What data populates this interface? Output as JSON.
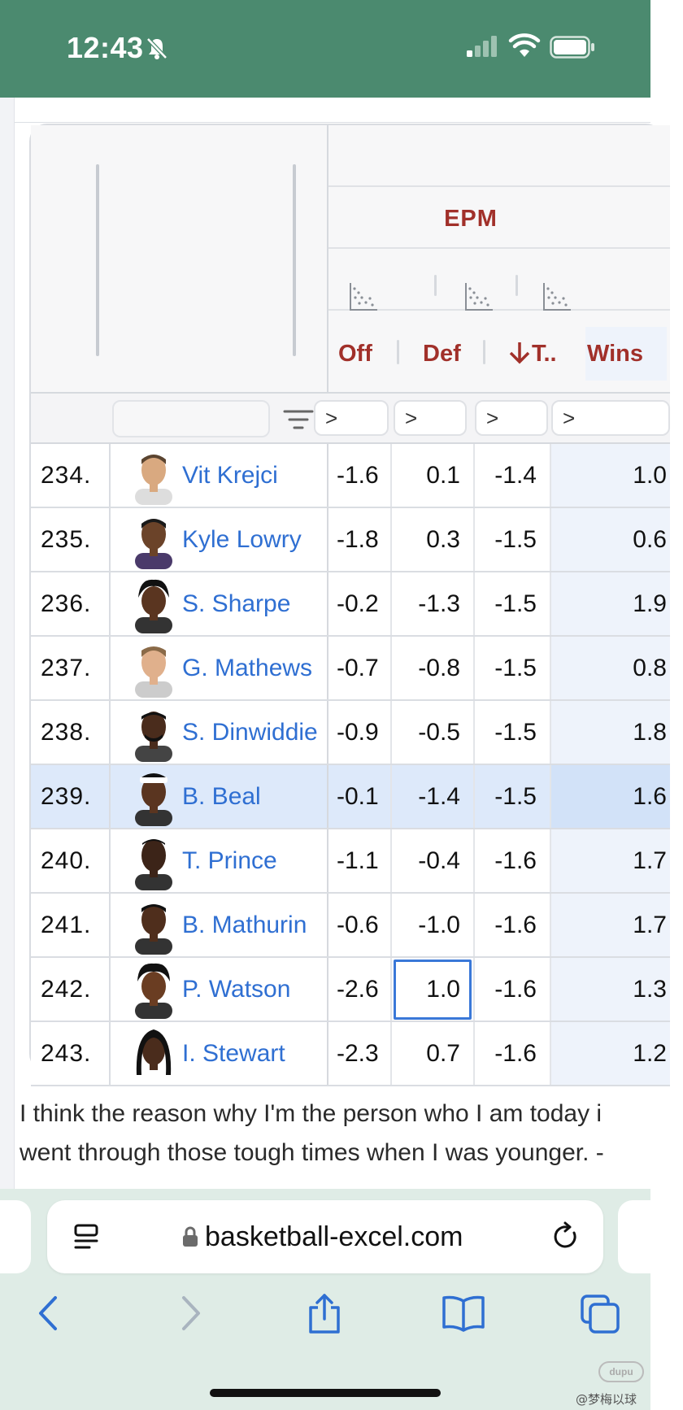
{
  "status_bar": {
    "time": "12:43"
  },
  "table": {
    "group_title": "EPM",
    "columns": {
      "off": "Off",
      "def": "Def",
      "tot": "T..",
      "wins": "Wins"
    },
    "filter_symbol": ">",
    "rows": [
      {
        "rank": "234.",
        "name": "Vit Krejci",
        "off": "-1.6",
        "def": "0.1",
        "tot": "-1.4",
        "wins": "1.0"
      },
      {
        "rank": "235.",
        "name": "Kyle Lowry",
        "off": "-1.8",
        "def": "0.3",
        "tot": "-1.5",
        "wins": "0.6"
      },
      {
        "rank": "236.",
        "name": "S. Sharpe",
        "off": "-0.2",
        "def": "-1.3",
        "tot": "-1.5",
        "wins": "1.9"
      },
      {
        "rank": "237.",
        "name": "G. Mathews",
        "off": "-0.7",
        "def": "-0.8",
        "tot": "-1.5",
        "wins": "0.8"
      },
      {
        "rank": "238.",
        "name": "S. Dinwiddie",
        "off": "-0.9",
        "def": "-0.5",
        "tot": "-1.5",
        "wins": "1.8"
      },
      {
        "rank": "239.",
        "name": "B. Beal",
        "off": "-0.1",
        "def": "-1.4",
        "tot": "-1.5",
        "wins": "1.6"
      },
      {
        "rank": "240.",
        "name": "T. Prince",
        "off": "-1.1",
        "def": "-0.4",
        "tot": "-1.6",
        "wins": "1.7"
      },
      {
        "rank": "241.",
        "name": "B. Mathurin",
        "off": "-0.6",
        "def": "-1.0",
        "tot": "-1.6",
        "wins": "1.7"
      },
      {
        "rank": "242.",
        "name": "P. Watson",
        "off": "-2.6",
        "def": "1.0",
        "tot": "-1.6",
        "wins": "1.3"
      },
      {
        "rank": "243.",
        "name": "I. Stewart",
        "off": "-2.3",
        "def": "0.7",
        "tot": "-1.6",
        "wins": "1.2"
      }
    ],
    "highlighted_rank": "239.",
    "selected_cell": "242. Def"
  },
  "quote": {
    "line1": "I think the reason why I'm the person who I am today i",
    "line2": "went through those tough times when I was younger. -"
  },
  "browser": {
    "url": "basketball-excel.com"
  },
  "watermark": {
    "badge": "dupu",
    "text": "@梦梅以球"
  },
  "colors": {
    "status_bar": "#4b8a6f",
    "header_red": "#a1302a",
    "link_blue": "#2f6fd2",
    "highlight": "#dde9fa",
    "browser_bg": "#dfece6"
  },
  "icons": [
    "bell-slash-icon",
    "signal-icon",
    "wifi-icon",
    "battery-icon",
    "scatter-icon",
    "sort-down-arrow-icon",
    "filter-icon",
    "reader-icon",
    "lock-icon",
    "reload-icon",
    "back-icon",
    "forward-icon",
    "share-icon",
    "bookmarks-icon",
    "tabs-icon"
  ]
}
